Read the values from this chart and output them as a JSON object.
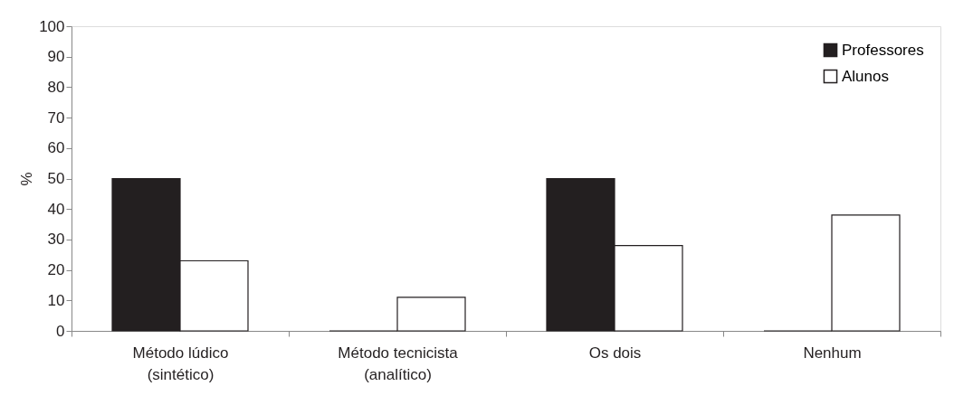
{
  "chart_data": {
    "type": "bar",
    "ylabel": "%",
    "categories": [
      "Método lúdico\n(sintético)",
      "Método tecnicista\n(analítico)",
      "Os dois",
      "Nenhum"
    ],
    "series": [
      {
        "name": "Professores",
        "color": "#231f20",
        "values": [
          50,
          0,
          50,
          0
        ]
      },
      {
        "name": "Alunos",
        "color": "#ffffff",
        "values": [
          23,
          11,
          28,
          38
        ]
      }
    ],
    "ylim": [
      0,
      100
    ],
    "yticks": [
      0,
      10,
      20,
      30,
      40,
      50,
      60,
      70,
      80,
      90,
      100
    ],
    "legend": "top right",
    "grid": false
  }
}
